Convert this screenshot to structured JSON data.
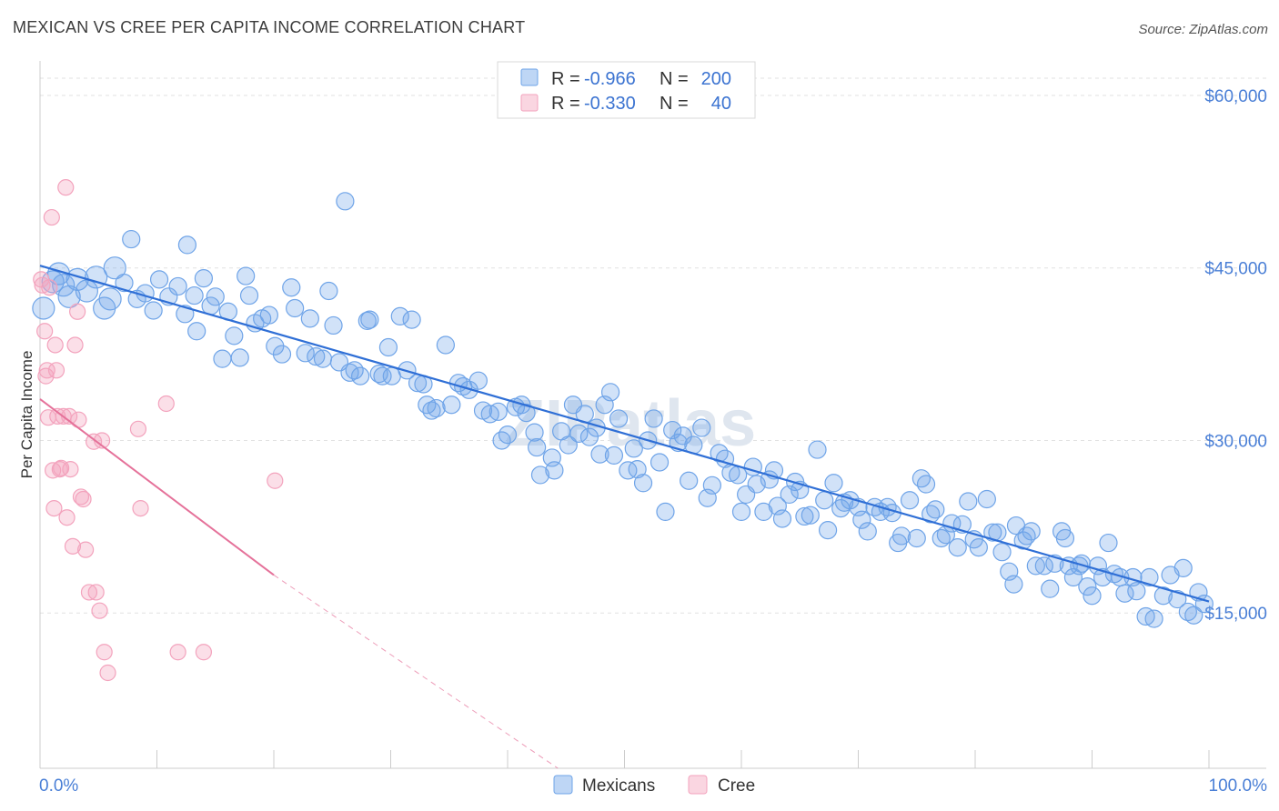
{
  "title": "MEXICAN VS CREE PER CAPITA INCOME CORRELATION CHART",
  "source": "Source: ZipAtlas.com",
  "watermark": "ZIPatlas",
  "colors": {
    "mexicans": "#6fa4e8",
    "mexicans_line": "#2f6fd6",
    "cree": "#f3a3bd",
    "cree_line": "#e5729a",
    "axis_text": "#4a7fd6"
  },
  "legend": {
    "r_label": "R =",
    "n_label": "N =",
    "mexicans": {
      "r": "-0.966",
      "n": "200"
    },
    "cree": {
      "r": "-0.330",
      "n": "40"
    }
  },
  "bottom_legend": [
    "Mexicans",
    "Cree"
  ],
  "chart_data": {
    "type": "scatter",
    "title": "MEXICAN VS CREE PER CAPITA INCOME CORRELATION CHART",
    "xlabel": "",
    "ylabel": "Per Capita Income",
    "xlim": [
      0,
      100
    ],
    "ylim": [
      1500,
      63000
    ],
    "x_tick_labels": [
      "0.0%",
      "100.0%"
    ],
    "y_ticks": [
      15000,
      30000,
      45000,
      60000
    ],
    "y_tick_labels": [
      "$15,000",
      "$30,000",
      "$45,000",
      "$60,000"
    ],
    "grid": true,
    "legend_position": "top-center",
    "series": [
      {
        "name": "Mexicans",
        "r": -0.966,
        "n": 200,
        "trend": {
          "x": [
            0,
            100
          ],
          "y": [
            45200,
            16000
          ]
        },
        "points": [
          [
            0.3,
            41500
          ],
          [
            1.1,
            43800
          ],
          [
            1.6,
            44500
          ],
          [
            2,
            43500
          ],
          [
            2.5,
            42500
          ],
          [
            3.2,
            44000
          ],
          [
            4,
            43000
          ],
          [
            4.8,
            44200
          ],
          [
            5.5,
            41500
          ],
          [
            6,
            42300
          ],
          [
            6.4,
            45000
          ],
          [
            7.2,
            43700
          ],
          [
            7.8,
            47500
          ],
          [
            8.3,
            42300
          ],
          [
            9,
            42800
          ],
          [
            9.7,
            41300
          ],
          [
            10.2,
            44000
          ],
          [
            11,
            42500
          ],
          [
            11.8,
            43400
          ],
          [
            12.4,
            41000
          ],
          [
            12.6,
            47000
          ],
          [
            13.2,
            42600
          ],
          [
            13.4,
            39500
          ],
          [
            14,
            44100
          ],
          [
            14.6,
            41700
          ],
          [
            15,
            42500
          ],
          [
            15.6,
            37100
          ],
          [
            16.1,
            41200
          ],
          [
            16.6,
            39100
          ],
          [
            17.1,
            37200
          ],
          [
            17.6,
            44300
          ],
          [
            17.9,
            42600
          ],
          [
            18.4,
            40200
          ],
          [
            19,
            40600
          ],
          [
            19.6,
            40900
          ],
          [
            20.1,
            38200
          ],
          [
            20.7,
            37500
          ],
          [
            21.5,
            43300
          ],
          [
            21.8,
            41500
          ],
          [
            22.7,
            37600
          ],
          [
            23.1,
            40600
          ],
          [
            23.6,
            37300
          ],
          [
            24.2,
            37100
          ],
          [
            24.7,
            43000
          ],
          [
            25.1,
            40000
          ],
          [
            25.6,
            36800
          ],
          [
            26.1,
            50800
          ],
          [
            26.5,
            35900
          ],
          [
            26.9,
            36100
          ],
          [
            27.4,
            35600
          ],
          [
            28,
            40400
          ],
          [
            28.2,
            40500
          ],
          [
            29,
            35800
          ],
          [
            29.3,
            35600
          ],
          [
            29.8,
            38100
          ],
          [
            30.1,
            35600
          ],
          [
            30.8,
            40800
          ],
          [
            31.4,
            36100
          ],
          [
            31.8,
            40500
          ],
          [
            32.3,
            35000
          ],
          [
            32.8,
            34900
          ],
          [
            33.1,
            33100
          ],
          [
            33.5,
            32600
          ],
          [
            33.9,
            32800
          ],
          [
            34.7,
            38300
          ],
          [
            35.2,
            33100
          ],
          [
            35.8,
            35000
          ],
          [
            36.2,
            34700
          ],
          [
            36.7,
            34400
          ],
          [
            37.5,
            35200
          ],
          [
            37.9,
            32600
          ],
          [
            38.5,
            32300
          ],
          [
            39.2,
            32500
          ],
          [
            39.5,
            30000
          ],
          [
            40,
            30500
          ],
          [
            40.7,
            32900
          ],
          [
            41.2,
            33100
          ],
          [
            41.6,
            32400
          ],
          [
            42.3,
            30700
          ],
          [
            42.5,
            29400
          ],
          [
            42.8,
            27000
          ],
          [
            43.8,
            28500
          ],
          [
            44,
            27400
          ],
          [
            44.6,
            30800
          ],
          [
            45.2,
            29600
          ],
          [
            45.6,
            33100
          ],
          [
            46.1,
            30600
          ],
          [
            46.6,
            32300
          ],
          [
            47,
            30300
          ],
          [
            47.6,
            31100
          ],
          [
            47.9,
            28800
          ],
          [
            48.3,
            33100
          ],
          [
            48.8,
            34200
          ],
          [
            49.1,
            28700
          ],
          [
            49.5,
            31900
          ],
          [
            50.3,
            27400
          ],
          [
            50.8,
            29300
          ],
          [
            51.1,
            27500
          ],
          [
            51.6,
            26300
          ],
          [
            52,
            30000
          ],
          [
            52.5,
            31900
          ],
          [
            53,
            28100
          ],
          [
            53.5,
            23800
          ],
          [
            54.1,
            30900
          ],
          [
            54.6,
            29800
          ],
          [
            55,
            30400
          ],
          [
            55.5,
            26500
          ],
          [
            55.9,
            29600
          ],
          [
            56.6,
            31100
          ],
          [
            57.1,
            25000
          ],
          [
            57.5,
            26100
          ],
          [
            58.1,
            28900
          ],
          [
            58.6,
            28400
          ],
          [
            59.1,
            27200
          ],
          [
            59.7,
            27000
          ],
          [
            60,
            23800
          ],
          [
            60.4,
            25300
          ],
          [
            61,
            27700
          ],
          [
            61.3,
            26200
          ],
          [
            61.9,
            23800
          ],
          [
            62.4,
            26600
          ],
          [
            62.8,
            27400
          ],
          [
            63.1,
            24300
          ],
          [
            63.5,
            23200
          ],
          [
            64.1,
            25300
          ],
          [
            64.6,
            26400
          ],
          [
            65,
            25700
          ],
          [
            65.4,
            23400
          ],
          [
            65.9,
            23500
          ],
          [
            66.5,
            29200
          ],
          [
            67.1,
            24800
          ],
          [
            67.4,
            22200
          ],
          [
            67.9,
            26300
          ],
          [
            68.5,
            24100
          ],
          [
            68.8,
            24600
          ],
          [
            69.3,
            24800
          ],
          [
            70,
            24200
          ],
          [
            70.3,
            23100
          ],
          [
            70.8,
            22100
          ],
          [
            71.4,
            24200
          ],
          [
            71.9,
            23800
          ],
          [
            72.5,
            24200
          ],
          [
            72.9,
            23700
          ],
          [
            73.4,
            21100
          ],
          [
            73.7,
            21700
          ],
          [
            74.4,
            24800
          ],
          [
            75,
            21500
          ],
          [
            75.4,
            26700
          ],
          [
            75.8,
            26200
          ],
          [
            76.2,
            23600
          ],
          [
            76.6,
            24000
          ],
          [
            77.1,
            21500
          ],
          [
            77.5,
            21800
          ],
          [
            78,
            22800
          ],
          [
            78.5,
            20700
          ],
          [
            78.9,
            22700
          ],
          [
            79.4,
            24700
          ],
          [
            79.9,
            21400
          ],
          [
            80.3,
            20700
          ],
          [
            81,
            24900
          ],
          [
            81.5,
            22000
          ],
          [
            81.9,
            22000
          ],
          [
            82.3,
            20300
          ],
          [
            82.9,
            18600
          ],
          [
            83.3,
            17500
          ],
          [
            83.5,
            22600
          ],
          [
            84.1,
            21300
          ],
          [
            84.4,
            21700
          ],
          [
            84.8,
            22100
          ],
          [
            85.2,
            19100
          ],
          [
            85.9,
            19100
          ],
          [
            86.4,
            17100
          ],
          [
            86.8,
            19300
          ],
          [
            87.4,
            22100
          ],
          [
            87.7,
            21500
          ],
          [
            88,
            19100
          ],
          [
            88.4,
            18100
          ],
          [
            88.9,
            19100
          ],
          [
            89.1,
            19300
          ],
          [
            89.6,
            17300
          ],
          [
            90,
            16500
          ],
          [
            90.5,
            19100
          ],
          [
            90.9,
            18100
          ],
          [
            91.4,
            21100
          ],
          [
            91.9,
            18400
          ],
          [
            92.4,
            18100
          ],
          [
            92.8,
            16700
          ],
          [
            93.5,
            18100
          ],
          [
            93.8,
            16900
          ],
          [
            94.6,
            14700
          ],
          [
            94.9,
            18100
          ],
          [
            95.3,
            14500
          ],
          [
            96.1,
            16500
          ],
          [
            96.7,
            18300
          ],
          [
            97.3,
            16200
          ],
          [
            97.8,
            18900
          ],
          [
            98.2,
            15100
          ],
          [
            98.7,
            14800
          ],
          [
            99.1,
            16800
          ],
          [
            99.6,
            15800
          ]
        ]
      },
      {
        "name": "Cree",
        "r": -0.33,
        "n": 40,
        "trend": {
          "x": [
            0,
            20
          ],
          "y": [
            33600,
            18300
          ]
        },
        "trend_ext": {
          "x": [
            20,
            44.3
          ],
          "y": [
            18300,
            1500
          ]
        },
        "points": [
          [
            0.1,
            44000
          ],
          [
            0.2,
            43500
          ],
          [
            0.4,
            39500
          ],
          [
            0.5,
            35600
          ],
          [
            0.6,
            36100
          ],
          [
            0.7,
            32000
          ],
          [
            0.8,
            43300
          ],
          [
            1,
            49400
          ],
          [
            1.1,
            27400
          ],
          [
            1.2,
            24100
          ],
          [
            1.3,
            38300
          ],
          [
            1.4,
            36100
          ],
          [
            1.5,
            32100
          ],
          [
            1.7,
            27500
          ],
          [
            1.8,
            27600
          ],
          [
            2,
            32100
          ],
          [
            2.2,
            52000
          ],
          [
            2.3,
            23300
          ],
          [
            2.5,
            32100
          ],
          [
            2.6,
            27500
          ],
          [
            2.8,
            20800
          ],
          [
            3,
            38300
          ],
          [
            3.2,
            41200
          ],
          [
            3.3,
            31800
          ],
          [
            3.5,
            25100
          ],
          [
            3.7,
            24900
          ],
          [
            3.9,
            20500
          ],
          [
            4.2,
            16800
          ],
          [
            4.6,
            29900
          ],
          [
            4.8,
            16800
          ],
          [
            5.1,
            15200
          ],
          [
            5.3,
            30000
          ],
          [
            5.5,
            11600
          ],
          [
            5.8,
            9800
          ],
          [
            8.4,
            31000
          ],
          [
            8.6,
            24100
          ],
          [
            10.8,
            33200
          ],
          [
            11.8,
            11600
          ],
          [
            14,
            11600
          ],
          [
            20.1,
            26500
          ]
        ]
      }
    ]
  }
}
